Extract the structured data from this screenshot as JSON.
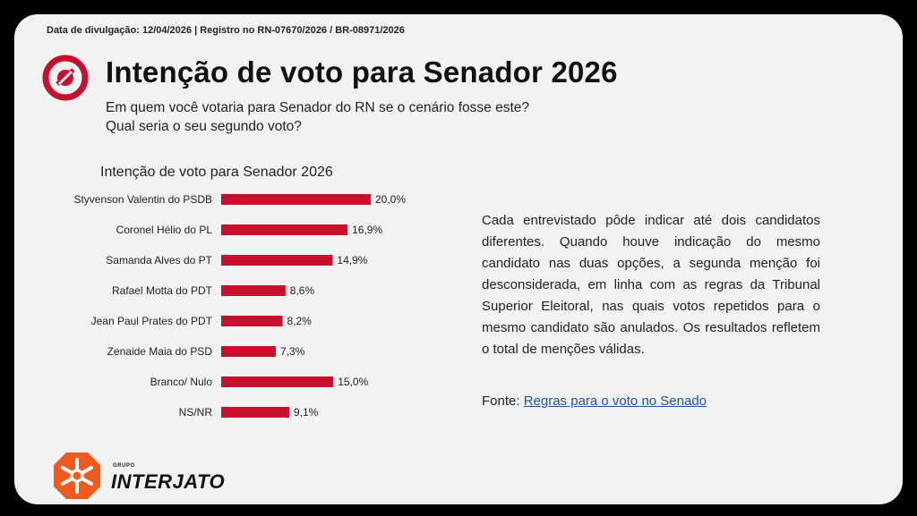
{
  "header": {
    "release_info": "Data de divulgação: 12/04/2026 | Registro no RN-07670/2026 / BR-08971/2026",
    "title": "Intenção de voto para Senador 2026",
    "question_line1": "Em quem você votaria para Senador do RN se o cenário fosse este?",
    "question_line2": "Qual seria o seu segundo voto?"
  },
  "chart_data": {
    "type": "bar",
    "orientation": "horizontal",
    "title": "Intenção de voto para Senador 2026",
    "categories": [
      "Styvenson Valentin do PSDB",
      "Coronel Hélio do PL",
      "Samanda Alves do PT",
      "Rafael Motta do PDT",
      "Jean Paul Prates do PDT",
      "Zenaide Maia do PSD",
      "Branco/ Nulo",
      "NS/NR"
    ],
    "values": [
      20.0,
      16.9,
      14.9,
      8.6,
      8.2,
      7.3,
      15.0,
      9.1
    ],
    "value_labels": [
      "20,0%",
      "16,9%",
      "14,9%",
      "8,6%",
      "8,2%",
      "7,3%",
      "15,0%",
      "9,1%"
    ],
    "xlim": [
      0,
      20.0
    ],
    "grid": false,
    "bar_color": "#c8102e"
  },
  "note": {
    "text": "Cada entrevistado pôde indicar até dois candidatos diferentes. Quando houve indicação do mesmo candidato nas duas opções, a segunda menção foi desconsiderada, em linha com as regras da Tribunal Superior Eleitoral, nas quais votos repetidos para o mesmo candidato são anulados. Os resultados refletem o total de menções válidas."
  },
  "source": {
    "label": "Fonte:",
    "link_text": "Regras para o voto no Senado"
  },
  "brand": {
    "group_label": "GRUPO",
    "name": "INTERJATO",
    "logo_icon": "interjato-logo-icon",
    "title_icon": "red-circle-logo-icon"
  },
  "colors": {
    "accent_red": "#c8102e",
    "logo_orange": "#f05a1e",
    "link_blue": "#1a56a6"
  }
}
